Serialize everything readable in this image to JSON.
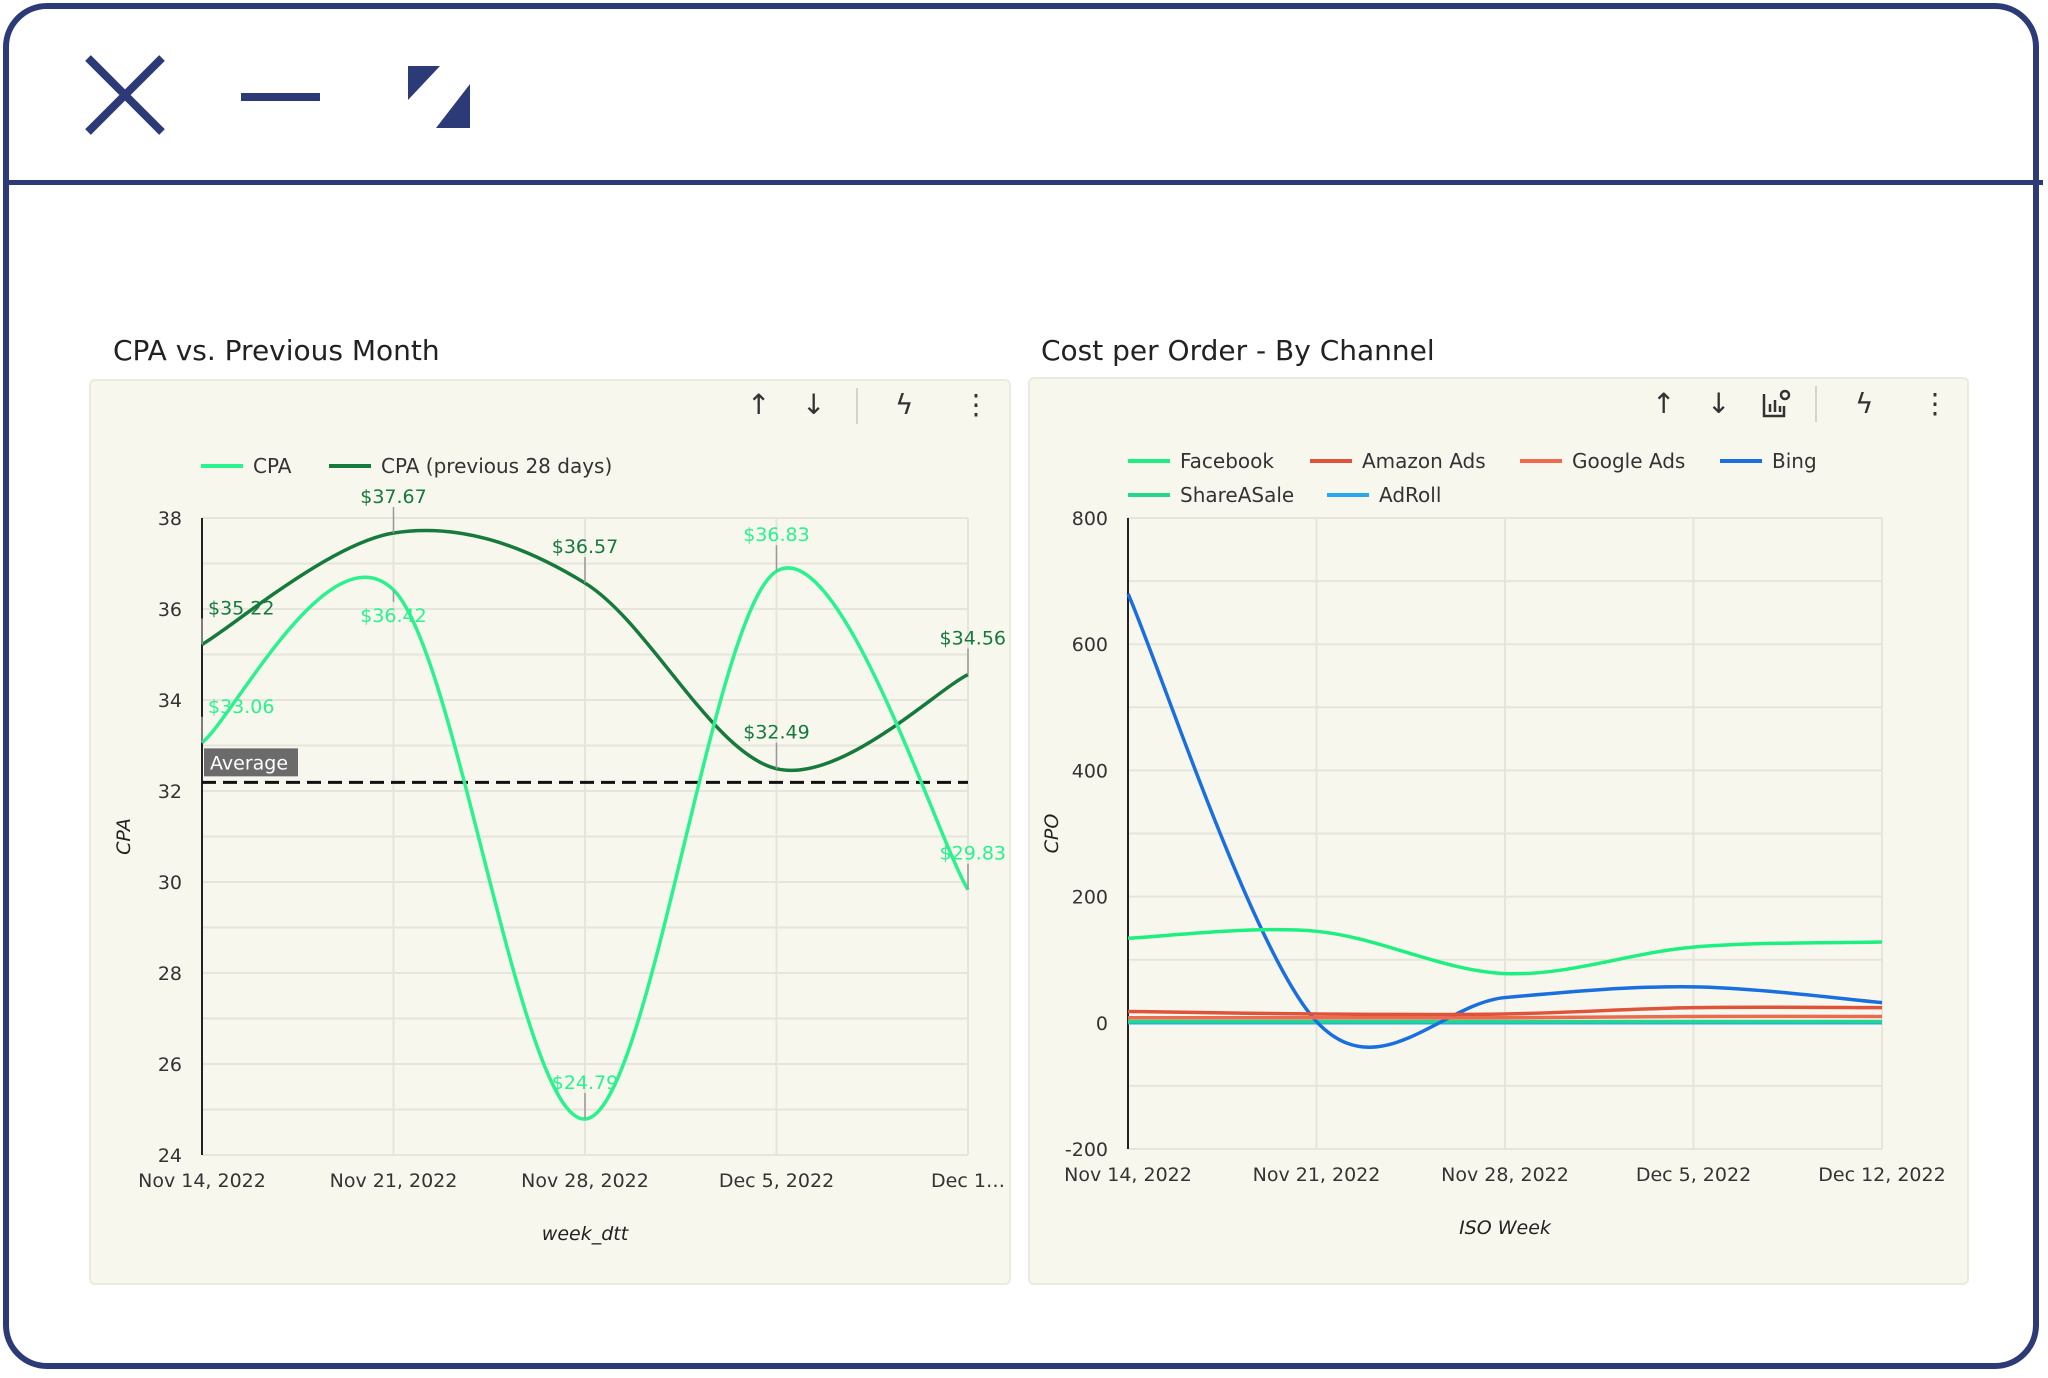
{
  "window": {
    "icons": [
      "close-icon",
      "minimize-icon",
      "resize-icon"
    ],
    "border_color": "#2d3a78"
  },
  "cards": [
    {
      "title": "CPA vs. Previous Month",
      "toolbar": [
        "arrow-up-icon",
        "arrow-down-icon",
        "lightning-icon",
        "more-vert-icon"
      ],
      "chart_data": {
        "type": "line",
        "title": "CPA vs. Previous Month",
        "xlabel": "week_dtt",
        "ylabel": "CPA",
        "categories": [
          "Nov 14, 2022",
          "Nov 21, 2022",
          "Nov 28, 2022",
          "Dec 5, 2022",
          "Dec 1…"
        ],
        "ylim": [
          24,
          38
        ],
        "yticks": [
          "24",
          "26",
          "28",
          "30",
          "32",
          "34",
          "36",
          "38"
        ],
        "grid": true,
        "legend": "top-left",
        "series": [
          {
            "name": "CPA",
            "color": "#2af28c",
            "values": [
              33.06,
              36.42,
              24.79,
              36.83,
              29.83
            ],
            "labels": [
              "$33.06",
              "$36.42",
              "$24.79",
              "$36.83",
              "$29.83"
            ]
          },
          {
            "name": "CPA (previous 28 days)",
            "color": "#157a3c",
            "values": [
              35.22,
              37.67,
              36.57,
              32.49,
              34.56
            ],
            "labels": [
              "$35.22",
              "$37.67",
              "$36.57",
              "$32.49",
              "$34.56"
            ]
          }
        ],
        "reference_line": {
          "label": "Average",
          "value": 32.19,
          "style": "dashed"
        }
      }
    },
    {
      "title": "Cost per Order - By Channel",
      "toolbar": [
        "arrow-up-icon",
        "arrow-down-icon",
        "chart-settings-icon",
        "lightning-icon",
        "more-vert-icon"
      ],
      "chart_data": {
        "type": "line",
        "title": "Cost per Order - By Channel",
        "xlabel": "ISO Week",
        "ylabel": "CPO",
        "categories": [
          "Nov 14, 2022",
          "Nov 21, 2022",
          "Nov 28, 2022",
          "Dec 5, 2022",
          "Dec 12, 2022"
        ],
        "ylim": [
          -200,
          800
        ],
        "yticks": [
          "-200",
          "0",
          "200",
          "400",
          "600",
          "800"
        ],
        "grid": true,
        "legend": "top-left",
        "series": [
          {
            "name": "Facebook",
            "color": "#1ef07f",
            "values": [
              134,
              145,
              78,
              120,
              128
            ]
          },
          {
            "name": "Amazon Ads",
            "color": "#e0533b",
            "values": [
              18,
              14,
              14,
              24,
              24
            ]
          },
          {
            "name": "Google Ads",
            "color": "#ee6a4f",
            "values": [
              8,
              8,
              8,
              10,
              10
            ]
          },
          {
            "name": "Bing",
            "color": "#1a6fe0",
            "values": [
              680,
              2,
              40,
              57,
              32
            ]
          },
          {
            "name": "ShareASale",
            "color": "#22d88a",
            "values": [
              2,
              2,
              2,
              2,
              2
            ]
          },
          {
            "name": "AdRoll",
            "color": "#27a9ef",
            "values": [
              0,
              0,
              0,
              0,
              0
            ]
          }
        ]
      }
    }
  ]
}
